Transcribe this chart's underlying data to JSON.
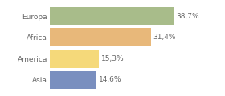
{
  "categories": [
    "Europa",
    "Africa",
    "America",
    "Asia"
  ],
  "values": [
    38.7,
    31.4,
    15.3,
    14.6
  ],
  "bar_colors": [
    "#a8bc8a",
    "#e8b87a",
    "#f5d97a",
    "#7a8fbf"
  ],
  "labels": [
    "38,7%",
    "31,4%",
    "15,3%",
    "14,6%"
  ],
  "xlim": [
    0,
    46
  ],
  "background_color": "#ffffff",
  "label_fontsize": 6.5,
  "category_fontsize": 6.5,
  "grid_color": "#dddddd"
}
